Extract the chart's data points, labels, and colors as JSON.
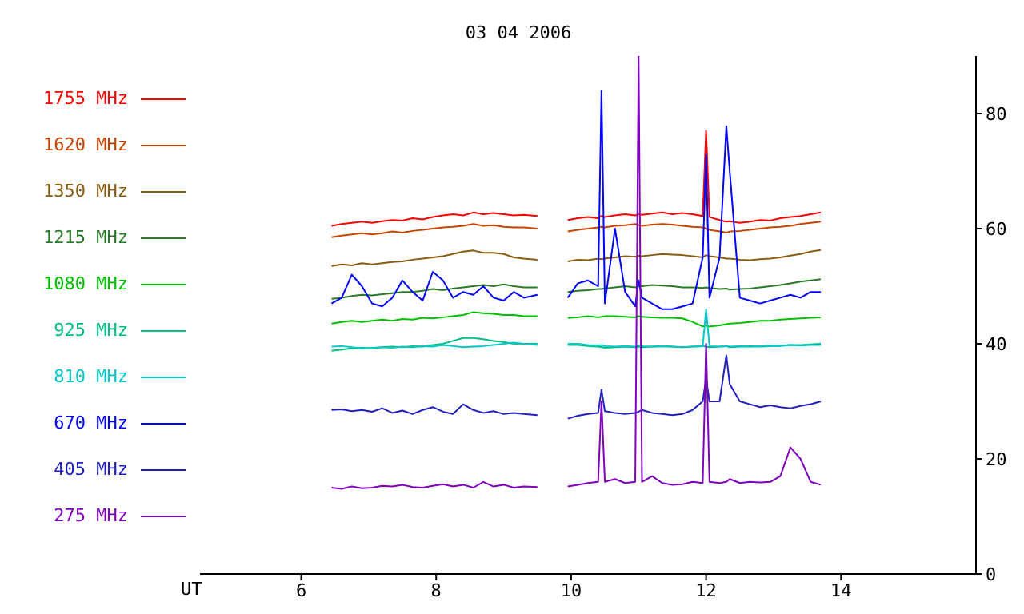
{
  "chart_data": {
    "type": "line",
    "title": "03 04 2006",
    "xlabel": "UT",
    "x": [
      6.45,
      6.6,
      6.75,
      6.9,
      7.05,
      7.2,
      7.35,
      7.5,
      7.65,
      7.8,
      7.95,
      8.1,
      8.25,
      8.4,
      8.55,
      8.7,
      8.85,
      9.0,
      9.15,
      9.3,
      9.5,
      9.75,
      9.95,
      10.1,
      10.25,
      10.4,
      10.45,
      10.5,
      10.65,
      10.8,
      10.95,
      11.0,
      11.05,
      11.2,
      11.35,
      11.5,
      11.65,
      11.8,
      11.95,
      12.0,
      12.05,
      12.2,
      12.3,
      12.35,
      12.5,
      12.65,
      12.8,
      12.95,
      13.1,
      13.25,
      13.4,
      13.55,
      13.7
    ],
    "series": [
      {
        "name": "1755 MHz",
        "color": "#ff0000",
        "values": [
          60.5,
          60.8,
          61,
          61.2,
          61,
          61.3,
          61.5,
          61.4,
          61.8,
          61.6,
          62,
          62.3,
          62.5,
          62.3,
          62.8,
          62.5,
          62.7,
          62.5,
          62.3,
          62.4,
          62.2,
          null,
          61.5,
          61.8,
          62,
          61.8,
          62.2,
          62,
          62.3,
          62.5,
          62.3,
          62.5,
          62.4,
          62.6,
          62.8,
          62.5,
          62.7,
          62.5,
          62.2,
          77,
          62,
          61.5,
          61.2,
          61.3,
          61,
          61.2,
          61.5,
          61.4,
          61.8,
          62,
          62.2,
          62.5,
          62.8
        ]
      },
      {
        "name": "1620 MHz",
        "color": "#c84400",
        "values": [
          58.5,
          58.8,
          59,
          59.2,
          59,
          59.2,
          59.5,
          59.3,
          59.6,
          59.8,
          60,
          60.2,
          60.3,
          60.5,
          60.8,
          60.5,
          60.6,
          60.3,
          60.2,
          60.2,
          60,
          null,
          59.5,
          59.8,
          60,
          60.2,
          60.3,
          60.2,
          60.5,
          60.6,
          60.8,
          60.6,
          60.5,
          60.7,
          60.8,
          60.7,
          60.5,
          60.3,
          60.2,
          60,
          59.8,
          59.5,
          59.3,
          59.5,
          59.6,
          59.8,
          60,
          60.2,
          60.3,
          60.5,
          60.8,
          61,
          61.2
        ]
      },
      {
        "name": "1350 MHz",
        "color": "#8a5c10",
        "values": [
          53.5,
          53.8,
          53.6,
          54,
          53.8,
          54,
          54.2,
          54.3,
          54.6,
          54.8,
          55,
          55.2,
          55.6,
          56,
          56.2,
          55.8,
          55.8,
          55.6,
          55,
          54.8,
          54.6,
          null,
          54.3,
          54.6,
          54.5,
          54.8,
          54.7,
          54.8,
          55,
          55.2,
          55.1,
          55.3,
          55.2,
          55.4,
          55.6,
          55.5,
          55.4,
          55.2,
          55,
          55.4,
          55.2,
          55,
          54.8,
          54.8,
          54.6,
          54.5,
          54.7,
          54.8,
          55,
          55.3,
          55.6,
          56,
          56.3
        ]
      },
      {
        "name": "1215 MHz",
        "color": "#2a7a2a",
        "values": [
          47.8,
          48,
          48.3,
          48.5,
          48.4,
          48.6,
          48.8,
          49,
          49,
          49.2,
          49.5,
          49.3,
          49.6,
          49.8,
          50,
          50.2,
          50,
          50.3,
          50,
          49.8,
          49.8,
          null,
          49,
          49.2,
          49.3,
          49.5,
          49.5,
          49.6,
          49.8,
          50,
          49.8,
          50,
          50,
          50.2,
          50.1,
          50,
          49.8,
          49.8,
          49.7,
          49.8,
          49.7,
          49.5,
          49.6,
          49.4,
          49.5,
          49.6,
          49.8,
          50,
          50.2,
          50.5,
          50.8,
          51,
          51.2
        ]
      },
      {
        "name": "1080 MHz",
        "color": "#00c000",
        "values": [
          43.5,
          43.8,
          44,
          43.8,
          44,
          44.2,
          44,
          44.3,
          44.2,
          44.5,
          44.4,
          44.6,
          44.8,
          45,
          45.5,
          45.3,
          45.2,
          45,
          45,
          44.8,
          44.8,
          null,
          44.5,
          44.6,
          44.8,
          44.6,
          44.7,
          44.8,
          44.8,
          44.7,
          44.6,
          44.8,
          44.7,
          44.6,
          44.5,
          44.5,
          44.4,
          43.8,
          43,
          43.2,
          43,
          43.2,
          43.4,
          43.5,
          43.6,
          43.8,
          44,
          44,
          44.2,
          44.3,
          44.4,
          44.5,
          44.6
        ]
      },
      {
        "name": "925 MHz",
        "color": "#00c080",
        "values": [
          38.8,
          39,
          39.2,
          39.3,
          39.2,
          39.4,
          39.5,
          39.4,
          39.6,
          39.5,
          39.8,
          40,
          40.5,
          41,
          41,
          40.8,
          40.5,
          40.3,
          40,
          40,
          40,
          null,
          39.8,
          39.8,
          39.6,
          39.5,
          39.4,
          39.3,
          39.4,
          39.5,
          39.4,
          39.5,
          39.4,
          39.5,
          39.6,
          39.5,
          39.4,
          39.5,
          39.6,
          39.5,
          39.4,
          39.5,
          39.6,
          39.4,
          39.5,
          39.6,
          39.5,
          39.6,
          39.7,
          39.8,
          39.8,
          39.9,
          40
        ]
      },
      {
        "name": "810 MHz",
        "color": "#00c8c8",
        "values": [
          39.5,
          39.6,
          39.4,
          39.2,
          39.3,
          39.4,
          39.3,
          39.5,
          39.4,
          39.6,
          39.5,
          39.8,
          39.6,
          39.4,
          39.5,
          39.6,
          39.8,
          40,
          40.2,
          40,
          39.8,
          null,
          40,
          40,
          39.8,
          39.7,
          39.8,
          39.6,
          39.5,
          39.6,
          39.5,
          39.7,
          39.6,
          39.5,
          39.6,
          39.5,
          39.4,
          39.5,
          39.6,
          46,
          39.6,
          39.5,
          39.6,
          39.5,
          39.6,
          39.5,
          39.6,
          39.7,
          39.6,
          39.8,
          39.7,
          39.8,
          39.8
        ]
      },
      {
        "name": "670 MHz",
        "color": "#0000ff",
        "values": [
          47,
          48,
          52,
          50,
          47,
          46.5,
          48,
          51,
          49,
          47.5,
          52.5,
          51,
          48,
          49,
          48.5,
          50,
          48,
          47.5,
          49,
          48,
          48.5,
          null,
          48,
          50.5,
          51,
          50,
          84,
          47,
          60,
          49,
          46.5,
          51,
          48,
          47,
          46,
          46,
          46.5,
          47,
          55,
          72.8,
          48,
          55,
          77.8,
          70,
          48,
          47.5,
          47,
          47.5,
          48,
          48.5,
          48,
          49,
          49
        ]
      },
      {
        "name": "405 MHz",
        "color": "#2020c0",
        "values": [
          28.5,
          28.6,
          28.3,
          28.5,
          28.2,
          28.8,
          28,
          28.4,
          27.8,
          28.5,
          29,
          28.2,
          27.8,
          29.5,
          28.5,
          28,
          28.3,
          27.8,
          28,
          27.8,
          27.6,
          null,
          27,
          27.5,
          27.8,
          28,
          32,
          28.3,
          28,
          27.8,
          28,
          28.2,
          28.5,
          28,
          27.8,
          27.6,
          27.8,
          28.5,
          30,
          34,
          30,
          30,
          38,
          33,
          30,
          29.5,
          29,
          29.3,
          29,
          28.8,
          29.2,
          29.5,
          30
        ]
      },
      {
        "name": "275 MHz",
        "color": "#8000c0",
        "values": [
          15,
          14.8,
          15.2,
          14.9,
          15,
          15.3,
          15.2,
          15.5,
          15.1,
          15,
          15.3,
          15.6,
          15.2,
          15.5,
          15,
          16,
          15.2,
          15.5,
          15,
          15.2,
          15.1,
          null,
          15.2,
          15.5,
          15.8,
          16,
          30,
          16,
          16.5,
          15.8,
          16,
          90,
          16,
          17,
          15.8,
          15.5,
          15.6,
          16,
          15.8,
          40,
          16,
          15.8,
          16,
          16.5,
          15.8,
          16,
          15.9,
          16,
          17,
          22,
          20,
          16,
          15.5
        ]
      }
    ],
    "xlim": [
      4.5,
      16
    ],
    "xticks": [
      6,
      8,
      10,
      12,
      14
    ],
    "ylim": [
      0,
      90
    ],
    "yticks": [
      0,
      20,
      40,
      60,
      80
    ],
    "grid": false,
    "legend": "left",
    "marker": "none",
    "line_style": "solid"
  }
}
